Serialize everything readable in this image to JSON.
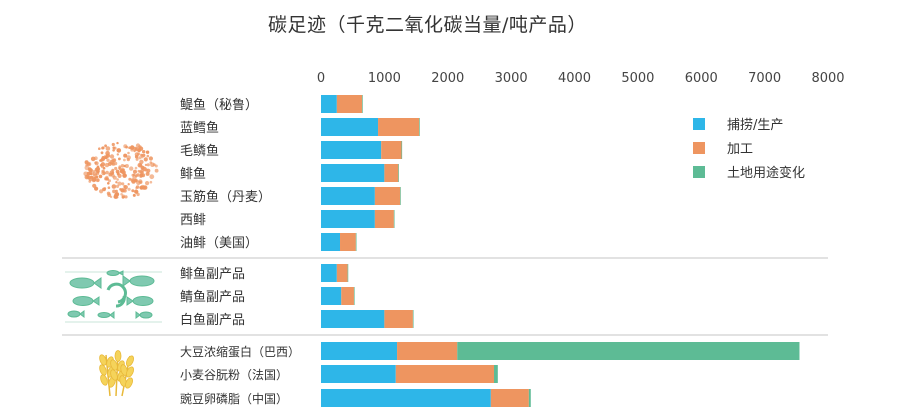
{
  "chart_data": {
    "type": "bar",
    "orientation": "horizontal",
    "stacked": true,
    "title": "碳足迹（千克二氧化碳当量/吨产品）",
    "xlim": [
      0,
      8000
    ],
    "xticks": [
      0,
      1000,
      2000,
      3000,
      4000,
      5000,
      6000,
      7000,
      8000
    ],
    "xticks_position": "top",
    "grid": false,
    "legend_position": "right",
    "categories": [
      "鳀鱼（秘鲁）",
      "蓝鳕鱼",
      "毛鳞鱼",
      "鲱鱼",
      "玉筋鱼（丹麦）",
      "西鲱",
      "油鲱（美国）",
      "鲱鱼副产品",
      "鲭鱼副产品",
      "白鱼副产品",
      "大豆浓缩蛋白（巴西）",
      "小麦谷朊粉（法国）",
      "豌豆卵磷脂（中国）"
    ],
    "series": [
      {
        "name": "捕捞/生产",
        "color": "#2EB6E8",
        "values": [
          250,
          900,
          950,
          1000,
          850,
          850,
          300,
          250,
          320,
          1000,
          1200,
          1180,
          2680
        ]
      },
      {
        "name": "加工",
        "color": "#EE9560",
        "values": [
          400,
          650,
          320,
          220,
          400,
          300,
          250,
          170,
          200,
          450,
          950,
          1550,
          600
        ]
      },
      {
        "name": "土地用途变化",
        "color": "#5DBB95",
        "values": [
          10,
          10,
          10,
          10,
          10,
          10,
          10,
          10,
          10,
          10,
          5400,
          60,
          30
        ]
      }
    ],
    "groups": [
      {
        "icon": "fish-school-icon",
        "categories": [
          0,
          6
        ]
      },
      {
        "icon": "fish-byproduct-icon",
        "categories": [
          7,
          9
        ]
      },
      {
        "icon": "wheat-icon",
        "categories": [
          10,
          12
        ]
      }
    ]
  }
}
